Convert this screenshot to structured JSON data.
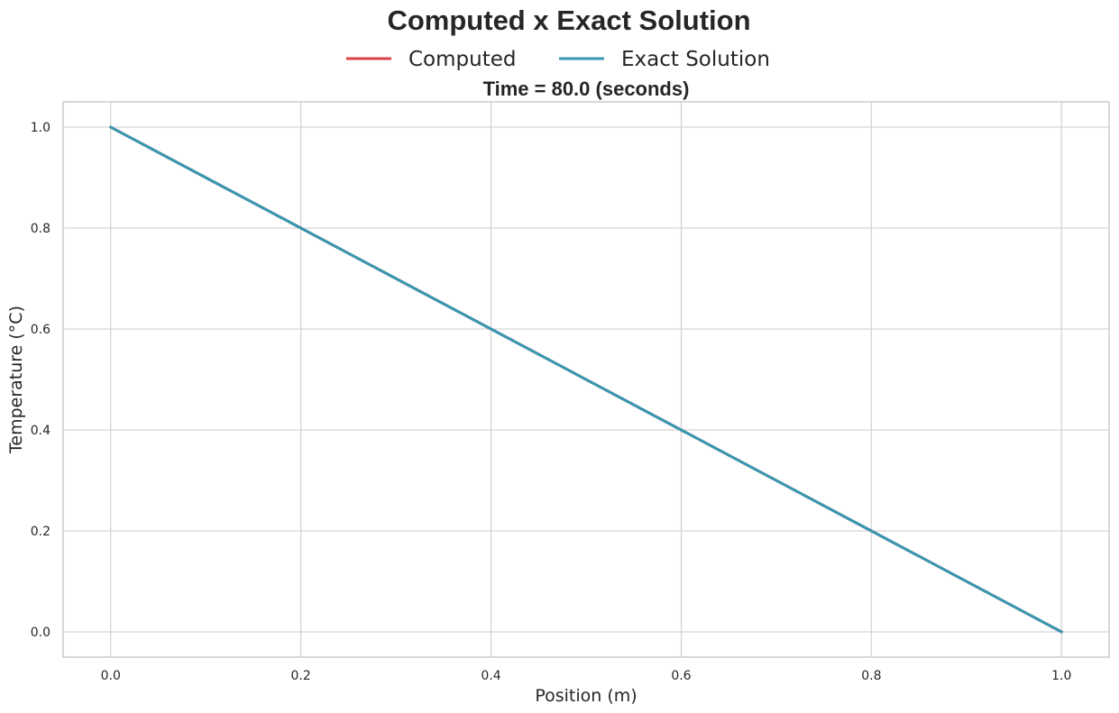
{
  "chart_data": {
    "type": "line",
    "title": "Computed x Exact Solution",
    "subtitle": "Time = 80.0 (seconds)",
    "xlabel": "Position (m)",
    "ylabel": "Temperature (°C)",
    "xlim": [
      -0.05,
      1.05
    ],
    "ylim": [
      -0.05,
      1.05
    ],
    "x_ticks": [
      0.0,
      0.2,
      0.4,
      0.6,
      0.8,
      1.0
    ],
    "y_ticks": [
      0.0,
      0.2,
      0.4,
      0.6,
      0.8,
      1.0
    ],
    "x_tick_labels": [
      "0.0",
      "0.2",
      "0.4",
      "0.6",
      "0.8",
      "1.0"
    ],
    "y_tick_labels": [
      "0.0",
      "0.2",
      "0.4",
      "0.6",
      "0.8",
      "1.0"
    ],
    "grid": true,
    "legend_position": "top-center",
    "series": [
      {
        "name": "Computed",
        "color": "#d9404a",
        "x": [
          0.0,
          0.2,
          0.4,
          0.6,
          0.8,
          1.0
        ],
        "y": [
          1.0,
          0.8,
          0.6,
          0.4,
          0.2,
          0.0
        ]
      },
      {
        "name": "Exact Solution",
        "color": "#3797b1",
        "x": [
          0.0,
          0.2,
          0.4,
          0.6,
          0.8,
          1.0
        ],
        "y": [
          1.0,
          0.8,
          0.6,
          0.4,
          0.2,
          0.0
        ]
      }
    ]
  }
}
